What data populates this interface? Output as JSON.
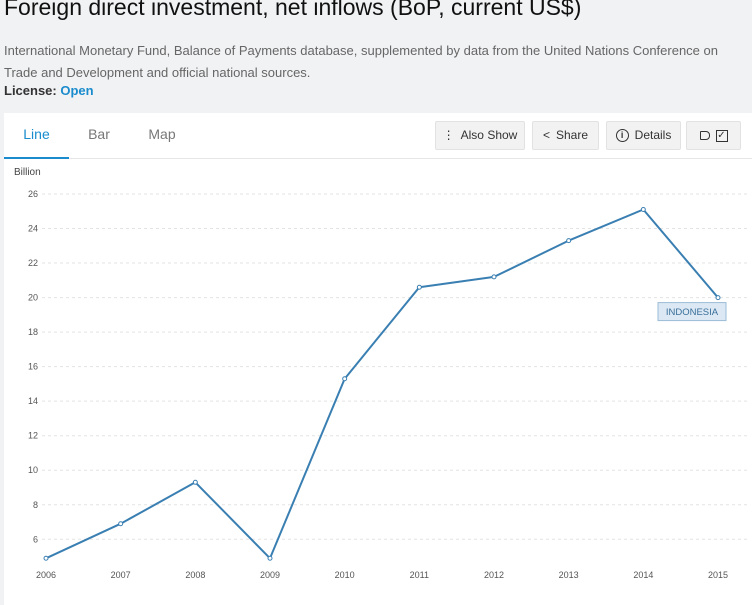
{
  "header": {
    "title": "Foreign direct investment, net inflows (BoP, current US$)",
    "source": "International Monetary Fund, Balance of Payments database, supplemented by data from the United Nations Conference on Trade and Development and official national sources.",
    "license_label": "License: ",
    "license_value": "Open"
  },
  "tabs": [
    {
      "label": "Line",
      "active": true
    },
    {
      "label": "Bar",
      "active": false
    },
    {
      "label": "Map",
      "active": false
    }
  ],
  "toolbar": {
    "also_show": "Also Show",
    "share": "Share",
    "details": "Details",
    "also_show_icon": "vertical-dots-icon",
    "share_icon": "share-icon",
    "details_icon": "info-icon",
    "label_toggle_icon": "tag-checkbox-icon"
  },
  "chart_data": {
    "type": "line",
    "ylabel": "Billion",
    "x": [
      2006,
      2007,
      2008,
      2009,
      2010,
      2011,
      2012,
      2013,
      2014,
      2015
    ],
    "series": [
      {
        "name": "INDONESIA",
        "values": [
          4.9,
          6.9,
          9.3,
          4.9,
          15.3,
          20.6,
          21.2,
          23.3,
          25.1,
          20.0
        ]
      }
    ],
    "yticks": [
      6,
      8,
      10,
      12,
      14,
      16,
      18,
      20,
      22,
      24,
      26
    ],
    "ylim": [
      4.8,
      26
    ],
    "grid": true,
    "line_color": "#3a7fb2",
    "label_bg": "#dce9f5"
  }
}
